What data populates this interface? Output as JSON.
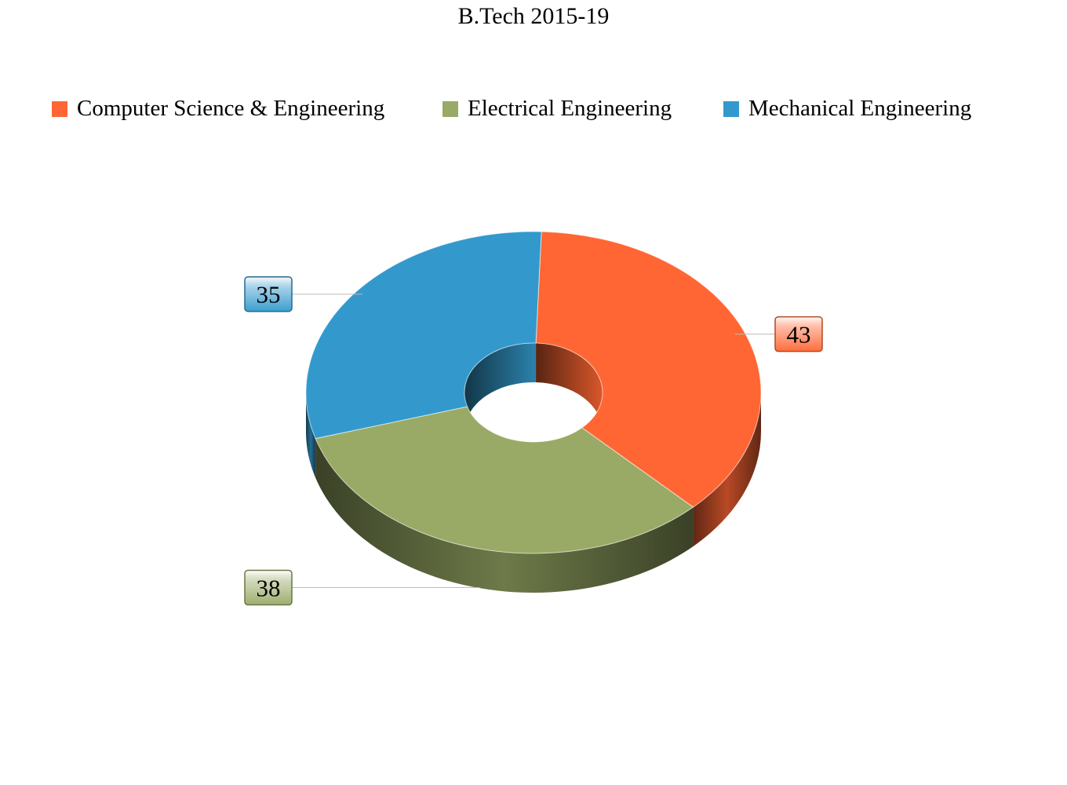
{
  "chart_data": {
    "type": "pie",
    "title": "B.Tech 2015-19",
    "categories": [
      "Computer Science & Engineering",
      "Electrical Engineering",
      "Mechanical Engineering"
    ],
    "values": [
      43,
      38,
      35
    ],
    "colors": [
      "#ff6633",
      "#99aa66",
      "#3399cc"
    ],
    "data_labels": [
      "43",
      "38",
      "35"
    ],
    "legend_position": "top",
    "style": "3d-doughnut"
  }
}
